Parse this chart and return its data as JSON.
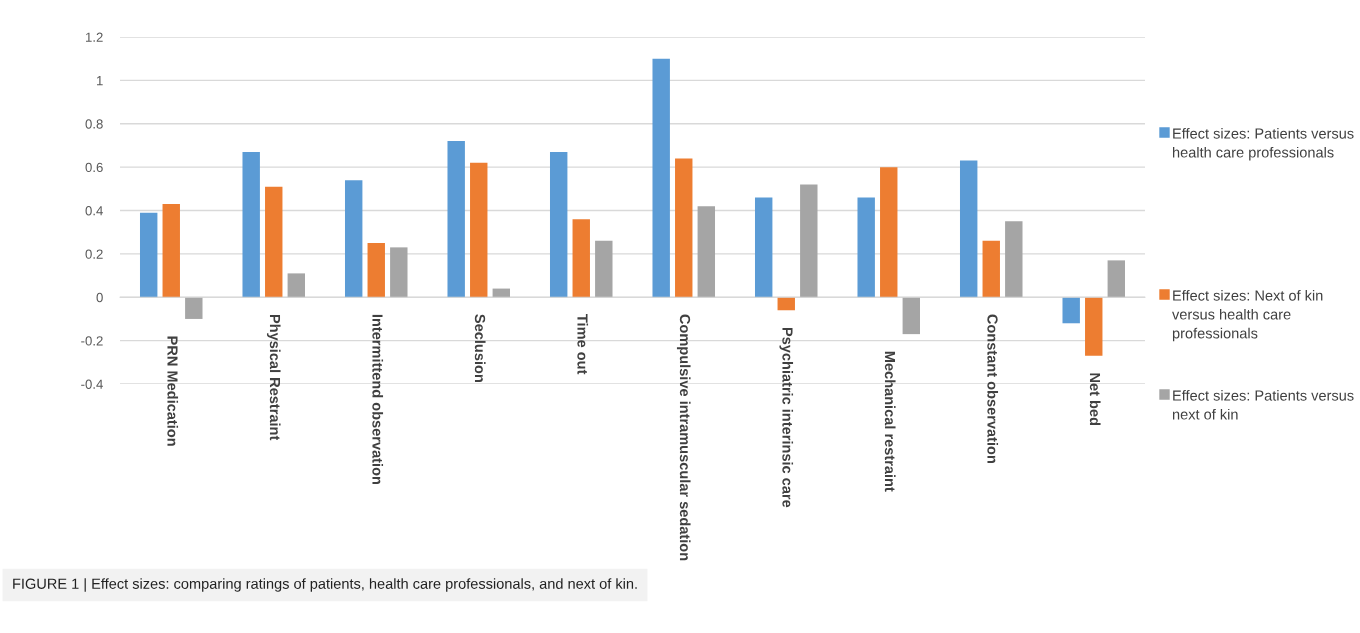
{
  "chart_data": {
    "type": "bar",
    "categories": [
      "PRN Medication",
      "Physical Restraint",
      "Intermittend observation",
      "Seclusion",
      "Time out",
      "Compulsive intramuscular sedation",
      "Psychiatric interinsic care",
      "Mechanical restraint",
      "Constant observation",
      "Net bed"
    ],
    "series": [
      {
        "name": "Effect sizes: Patients versus health care professionals",
        "color": "#5b9bd5",
        "values": [
          0.39,
          0.67,
          0.54,
          0.72,
          0.67,
          1.1,
          0.46,
          0.46,
          0.63,
          -0.12
        ]
      },
      {
        "name": "Effect sizes: Next of kin versus health care professionals",
        "color": "#ed7d31",
        "values": [
          0.43,
          0.51,
          0.25,
          0.62,
          0.36,
          0.64,
          -0.06,
          0.6,
          0.26,
          -0.27
        ]
      },
      {
        "name": "Effect sizes: Patients versus next of kin",
        "color": "#a5a5a5",
        "values": [
          -0.1,
          0.11,
          0.23,
          0.04,
          0.26,
          0.42,
          0.52,
          -0.17,
          0.35,
          0.17
        ]
      }
    ],
    "ylim": [
      -0.4,
      1.2
    ],
    "yticks": [
      {
        "value": -0.4,
        "label": "-0.4"
      },
      {
        "value": -0.2,
        "label": "-0.2"
      },
      0,
      0.2,
      0.4,
      0.6,
      0.8,
      1,
      1.2
    ],
    "grid": "y",
    "legend": "right",
    "annotations": [
      "FIGURE 1 | Effect sizes: comparing ratings of patients, health care professionals, and next of kin."
    ]
  }
}
